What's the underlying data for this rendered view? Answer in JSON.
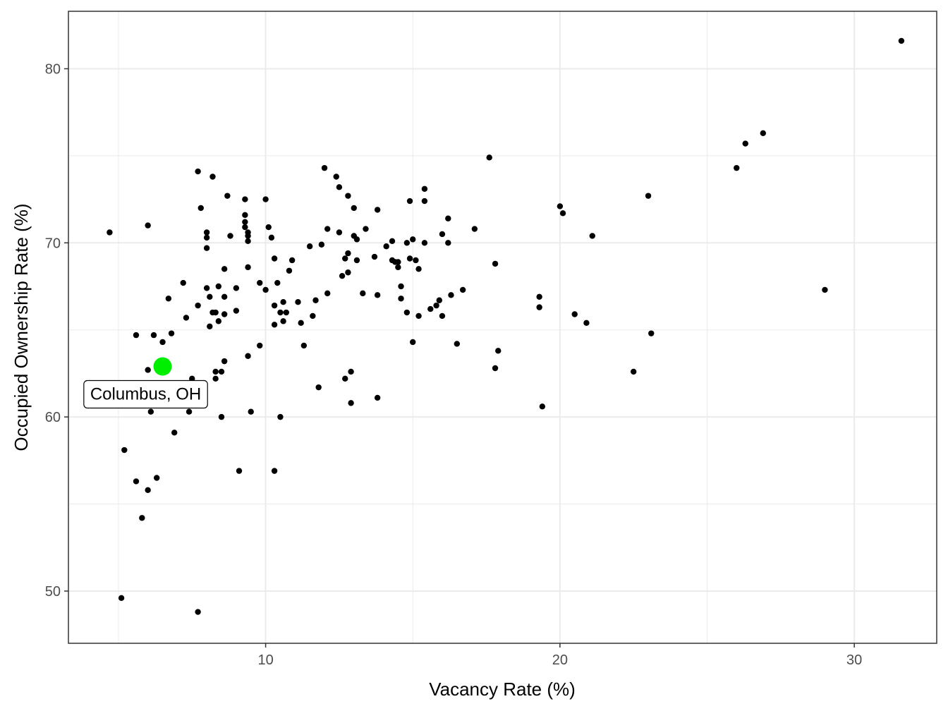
{
  "chart_data": {
    "type": "scatter",
    "title": "",
    "xlabel": "Vacancy Rate (%)",
    "ylabel": "Occupied Ownership Rate (%)",
    "xlim": [
      3.3,
      32.8
    ],
    "ylim": [
      47.0,
      83.3
    ],
    "xticks": [
      10,
      20,
      30
    ],
    "yticks": [
      50,
      60,
      70,
      80
    ],
    "grid": true,
    "legend": "none",
    "colors": {
      "point": "#000000",
      "highlight": "#00ee00",
      "grid": "#ebebeb",
      "panel_border": "#333333"
    },
    "highlight": {
      "label": "Columbus, OH",
      "x": 6.5,
      "y": 62.9
    },
    "points": [
      [
        4.7,
        70.6
      ],
      [
        5.1,
        49.6
      ],
      [
        5.2,
        58.1
      ],
      [
        5.6,
        64.7
      ],
      [
        5.6,
        56.3
      ],
      [
        5.8,
        54.2
      ],
      [
        6.0,
        71.0
      ],
      [
        6.0,
        62.7
      ],
      [
        6.0,
        55.8
      ],
      [
        6.1,
        60.3
      ],
      [
        6.2,
        64.7
      ],
      [
        6.3,
        56.5
      ],
      [
        6.5,
        64.3
      ],
      [
        6.7,
        66.8
      ],
      [
        6.8,
        64.8
      ],
      [
        6.9,
        59.1
      ],
      [
        7.2,
        67.7
      ],
      [
        7.3,
        65.7
      ],
      [
        7.4,
        60.3
      ],
      [
        7.5,
        62.2
      ],
      [
        7.7,
        74.1
      ],
      [
        7.7,
        66.4
      ],
      [
        7.7,
        48.8
      ],
      [
        7.8,
        72.0
      ],
      [
        8.0,
        70.6
      ],
      [
        8.0,
        70.3
      ],
      [
        8.0,
        69.7
      ],
      [
        8.0,
        67.4
      ],
      [
        8.1,
        66.9
      ],
      [
        8.1,
        65.2
      ],
      [
        8.2,
        73.8
      ],
      [
        8.2,
        66.0
      ],
      [
        8.3,
        66.0
      ],
      [
        8.3,
        62.6
      ],
      [
        8.3,
        62.2
      ],
      [
        8.4,
        67.5
      ],
      [
        8.4,
        65.5
      ],
      [
        8.5,
        60.0
      ],
      [
        8.5,
        62.6
      ],
      [
        8.6,
        68.5
      ],
      [
        8.6,
        66.9
      ],
      [
        8.6,
        65.9
      ],
      [
        8.6,
        63.2
      ],
      [
        8.7,
        72.7
      ],
      [
        8.8,
        70.4
      ],
      [
        9.0,
        67.4
      ],
      [
        9.0,
        66.1
      ],
      [
        9.1,
        56.9
      ],
      [
        9.3,
        72.5
      ],
      [
        9.3,
        71.6
      ],
      [
        9.3,
        70.9
      ],
      [
        9.3,
        71.2
      ],
      [
        9.4,
        70.6
      ],
      [
        9.4,
        70.4
      ],
      [
        9.4,
        70.1
      ],
      [
        9.4,
        68.6
      ],
      [
        9.4,
        63.5
      ],
      [
        9.5,
        60.3
      ],
      [
        9.8,
        67.7
      ],
      [
        9.8,
        64.1
      ],
      [
        10.0,
        72.5
      ],
      [
        10.0,
        67.3
      ],
      [
        10.1,
        70.9
      ],
      [
        10.2,
        70.3
      ],
      [
        10.3,
        69.1
      ],
      [
        10.3,
        66.4
      ],
      [
        10.3,
        65.3
      ],
      [
        10.4,
        67.7
      ],
      [
        10.5,
        66.0
      ],
      [
        10.5,
        60.0
      ],
      [
        10.6,
        66.6
      ],
      [
        10.6,
        65.5
      ],
      [
        10.3,
        56.9
      ],
      [
        10.7,
        66.0
      ],
      [
        10.8,
        68.4
      ],
      [
        10.9,
        69.0
      ],
      [
        11.1,
        66.6
      ],
      [
        11.2,
        65.4
      ],
      [
        11.3,
        64.1
      ],
      [
        11.5,
        69.8
      ],
      [
        11.6,
        65.8
      ],
      [
        11.7,
        66.7
      ],
      [
        11.8,
        61.7
      ],
      [
        11.9,
        69.9
      ],
      [
        12.0,
        74.3
      ],
      [
        12.1,
        70.8
      ],
      [
        12.1,
        67.1
      ],
      [
        12.4,
        73.8
      ],
      [
        12.5,
        73.2
      ],
      [
        12.5,
        70.6
      ],
      [
        12.6,
        68.1
      ],
      [
        12.7,
        69.1
      ],
      [
        12.7,
        62.2
      ],
      [
        12.8,
        72.7
      ],
      [
        12.8,
        69.4
      ],
      [
        12.8,
        68.3
      ],
      [
        12.9,
        60.8
      ],
      [
        12.9,
        62.6
      ],
      [
        13.0,
        72.0
      ],
      [
        13.0,
        70.4
      ],
      [
        13.1,
        70.2
      ],
      [
        13.1,
        69.0
      ],
      [
        13.3,
        67.1
      ],
      [
        13.4,
        70.8
      ],
      [
        13.7,
        69.2
      ],
      [
        13.8,
        67.0
      ],
      [
        13.8,
        61.1
      ],
      [
        13.8,
        71.9
      ],
      [
        14.1,
        69.8
      ],
      [
        14.3,
        70.1
      ],
      [
        14.3,
        69.0
      ],
      [
        14.4,
        68.9
      ],
      [
        14.5,
        68.6
      ],
      [
        14.5,
        68.9
      ],
      [
        14.6,
        67.5
      ],
      [
        14.6,
        66.8
      ],
      [
        14.8,
        66.0
      ],
      [
        14.8,
        70.0
      ],
      [
        14.9,
        72.4
      ],
      [
        14.9,
        69.1
      ],
      [
        15.0,
        64.3
      ],
      [
        15.0,
        70.2
      ],
      [
        15.1,
        69.0
      ],
      [
        15.2,
        68.5
      ],
      [
        15.2,
        65.8
      ],
      [
        15.4,
        73.1
      ],
      [
        15.4,
        72.4
      ],
      [
        15.4,
        70.0
      ],
      [
        15.6,
        66.2
      ],
      [
        15.8,
        66.4
      ],
      [
        15.9,
        66.7
      ],
      [
        16.0,
        70.5
      ],
      [
        16.0,
        65.8
      ],
      [
        16.2,
        71.4
      ],
      [
        16.2,
        70.0
      ],
      [
        16.3,
        67.0
      ],
      [
        16.5,
        64.2
      ],
      [
        16.7,
        67.3
      ],
      [
        17.1,
        70.8
      ],
      [
        17.6,
        74.9
      ],
      [
        17.8,
        62.8
      ],
      [
        17.8,
        68.8
      ],
      [
        17.9,
        63.8
      ],
      [
        19.3,
        66.9
      ],
      [
        19.3,
        66.3
      ],
      [
        19.4,
        60.6
      ],
      [
        20.0,
        72.1
      ],
      [
        20.1,
        71.7
      ],
      [
        20.5,
        65.9
      ],
      [
        20.9,
        65.4
      ],
      [
        21.1,
        70.4
      ],
      [
        22.5,
        62.6
      ],
      [
        23.0,
        72.7
      ],
      [
        23.1,
        64.8
      ],
      [
        26.0,
        74.3
      ],
      [
        26.3,
        75.7
      ],
      [
        26.9,
        76.3
      ],
      [
        29.0,
        67.3
      ],
      [
        31.6,
        81.6
      ]
    ]
  }
}
